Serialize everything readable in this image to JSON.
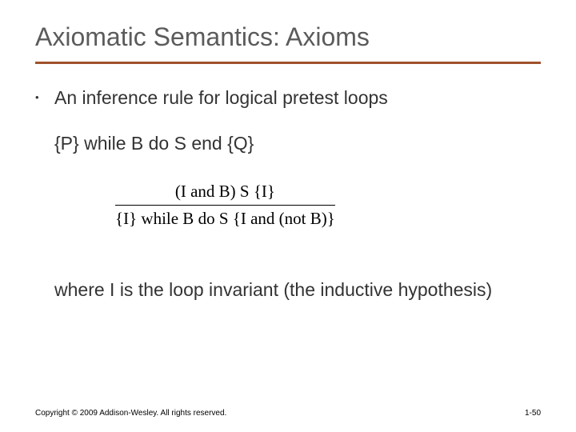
{
  "title": {
    "text": "Axiomatic Semantics: Axioms",
    "color": "#5b5b5b",
    "fontsize": 32
  },
  "underline": {
    "color": "#a0522d",
    "thickness": 3
  },
  "bullet": {
    "marker": "•",
    "text": "An inference rule for logical pretest loops",
    "text_color": "#333333",
    "fontsize": 23
  },
  "hoare_triple": {
    "text": "{P} while B do S end {Q}",
    "color": "#333333",
    "fontsize": 23
  },
  "inference_rule": {
    "numerator": "(I and B) S {I}",
    "denominator": "{I} while B do S {I and (not B)}",
    "font_family": "serif",
    "fontsize": 21,
    "divider_color": "#000000"
  },
  "explanation": {
    "text": "where I is the loop invariant (the inductive hypothesis)",
    "color": "#333333",
    "fontsize": 23
  },
  "footer": {
    "left": "Copyright © 2009 Addison-Wesley. All rights reserved.",
    "right": "1-50",
    "fontsize": 10
  },
  "background_color": "#ffffff"
}
